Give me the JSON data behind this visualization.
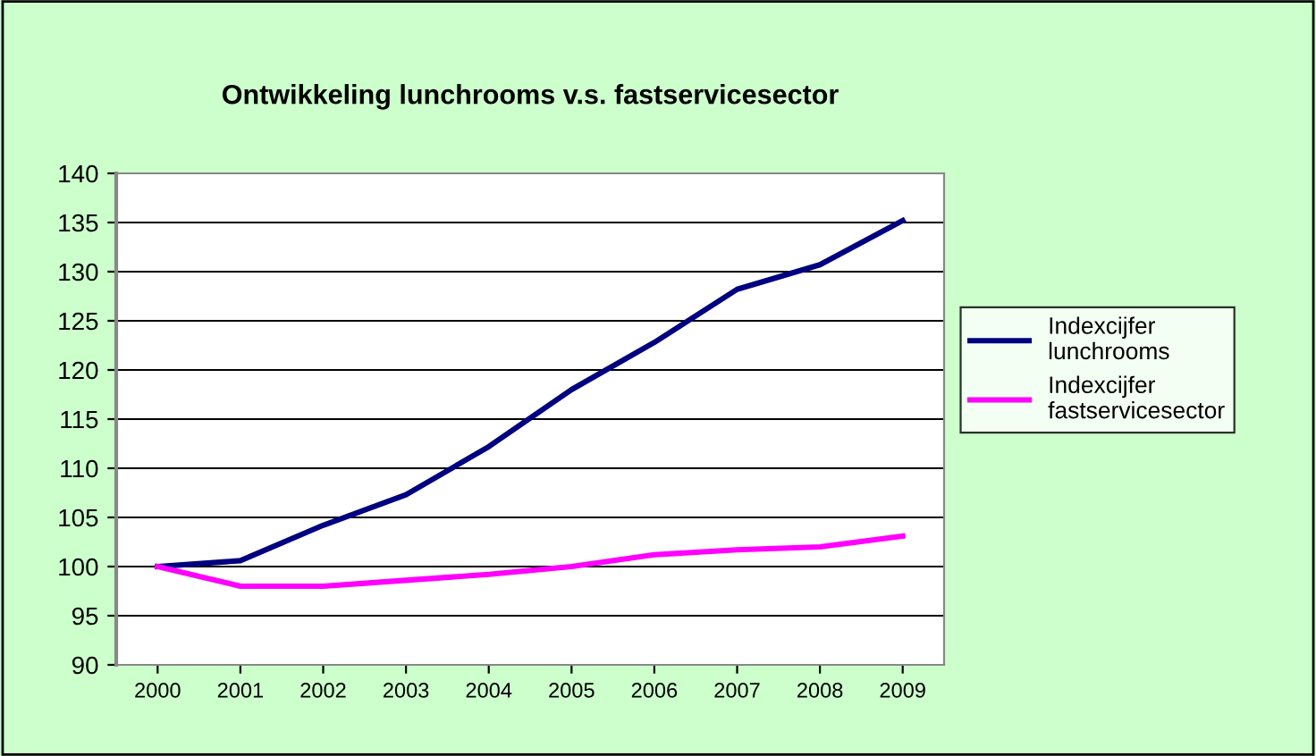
{
  "chart_data": {
    "type": "line",
    "title": "Ontwikkeling lunchrooms v.s. fastservicesector",
    "categories": [
      "2000",
      "2001",
      "2002",
      "2003",
      "2004",
      "2005",
      "2006",
      "2007",
      "2008",
      "2009"
    ],
    "series": [
      {
        "name": "Indexcijfer\nlunchrooms",
        "color": "#000080",
        "values": [
          100,
          100.6,
          104.2,
          107.3,
          112.2,
          118,
          122.8,
          128.2,
          130.7,
          135.2
        ]
      },
      {
        "name": "Indexcijfer\nfastservicesector",
        "color": "#ff00ff",
        "values": [
          100,
          98,
          98,
          98.6,
          99.2,
          100,
          101.2,
          101.7,
          102,
          103.1
        ]
      }
    ],
    "ylim": [
      90,
      140
    ],
    "yticks": [
      90,
      95,
      100,
      105,
      110,
      115,
      120,
      125,
      130,
      135,
      140
    ],
    "grid": "y",
    "legend": "right",
    "marker": "none",
    "line_style": "solid"
  }
}
